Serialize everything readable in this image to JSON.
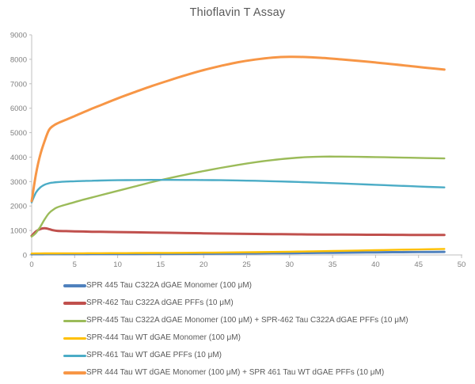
{
  "chart_data": {
    "type": "line",
    "title": "Thioflavin T Assay",
    "xlabel": "",
    "ylabel": "",
    "xlim": [
      0,
      50
    ],
    "ylim": [
      0,
      9000
    ],
    "x_ticks": [
      0,
      5,
      10,
      15,
      20,
      25,
      30,
      35,
      40,
      45,
      50
    ],
    "y_ticks": [
      0,
      1000,
      2000,
      3000,
      4000,
      5000,
      6000,
      7000,
      8000,
      9000
    ],
    "grid": false,
    "legend_position": "bottom",
    "axis_color": "#BFBFBF",
    "tick_text_color": "#7F7F7F",
    "x": [
      0,
      0.5,
      1,
      1.5,
      2,
      2.5,
      3,
      4,
      5,
      6,
      7,
      8,
      10,
      12,
      14,
      16,
      18,
      20,
      22,
      24,
      26,
      28,
      30,
      32,
      34,
      36,
      38,
      40,
      42,
      44,
      46,
      48
    ],
    "series": [
      {
        "name": "SPR 445 Tau C322A dGAE Monomer (100 μM)",
        "color": "#4F81BD",
        "width": 3,
        "values": [
          30,
          32,
          33,
          34,
          35,
          35,
          36,
          36,
          37,
          37,
          38,
          38,
          40,
          42,
          44,
          46,
          49,
          52,
          56,
          60,
          65,
          70,
          76,
          82,
          88,
          94,
          100,
          106,
          112,
          117,
          121,
          125
        ]
      },
      {
        "name": "SPR-462 Tau C322A dGAE PFFs (10 μM)",
        "color": "#C0504D",
        "width": 3,
        "values": [
          780,
          960,
          1060,
          1090,
          1060,
          1010,
          985,
          975,
          965,
          958,
          950,
          945,
          935,
          925,
          915,
          905,
          895,
          885,
          875,
          867,
          858,
          852,
          846,
          840,
          836,
          832,
          828,
          825,
          822,
          820,
          818,
          815
        ]
      },
      {
        "name": "SPR-445 Tau C322A dGAE Monomer (100 μM) + SPR-462 Tau C322A dGAE PFFs (10 μM)",
        "color": "#9BBB59",
        "width": 2.4,
        "values": [
          750,
          900,
          1150,
          1450,
          1700,
          1850,
          1950,
          2060,
          2160,
          2260,
          2350,
          2440,
          2620,
          2800,
          2980,
          3140,
          3290,
          3430,
          3560,
          3680,
          3790,
          3880,
          3950,
          4000,
          4020,
          4020,
          4010,
          4000,
          3990,
          3975,
          3960,
          3945
        ]
      },
      {
        "name": "SPR-444 Tau WT dGAE Monomer (100 μM)",
        "color": "#FFC000",
        "width": 2.4,
        "values": [
          60,
          62,
          63,
          64,
          65,
          66,
          66,
          67,
          68,
          69,
          70,
          71,
          74,
          77,
          80,
          84,
          88,
          93,
          99,
          106,
          114,
          123,
          133,
          144,
          156,
          168,
          181,
          194,
          207,
          220,
          232,
          245
        ]
      },
      {
        "name": "SPR-461 Tau WT dGAE PFFs (10 μM)",
        "color": "#4BACC6",
        "width": 2.4,
        "values": [
          2150,
          2550,
          2760,
          2870,
          2930,
          2960,
          2980,
          3000,
          3015,
          3025,
          3035,
          3042,
          3055,
          3063,
          3068,
          3068,
          3066,
          3062,
          3055,
          3045,
          3032,
          3015,
          2995,
          2972,
          2948,
          2922,
          2895,
          2868,
          2840,
          2812,
          2785,
          2760
        ]
      },
      {
        "name": "SPR 444 Tau WT dGAE Monomer (100 μM) + SPR 461 Tau WT dGAE PFFs (10 μM)",
        "color": "#F79646",
        "width": 3,
        "values": [
          2200,
          3300,
          4100,
          4650,
          5100,
          5280,
          5380,
          5530,
          5680,
          5830,
          5980,
          6120,
          6400,
          6660,
          6910,
          7140,
          7360,
          7560,
          7730,
          7880,
          7990,
          8070,
          8100,
          8090,
          8050,
          7995,
          7935,
          7870,
          7800,
          7725,
          7650,
          7580
        ]
      }
    ]
  }
}
